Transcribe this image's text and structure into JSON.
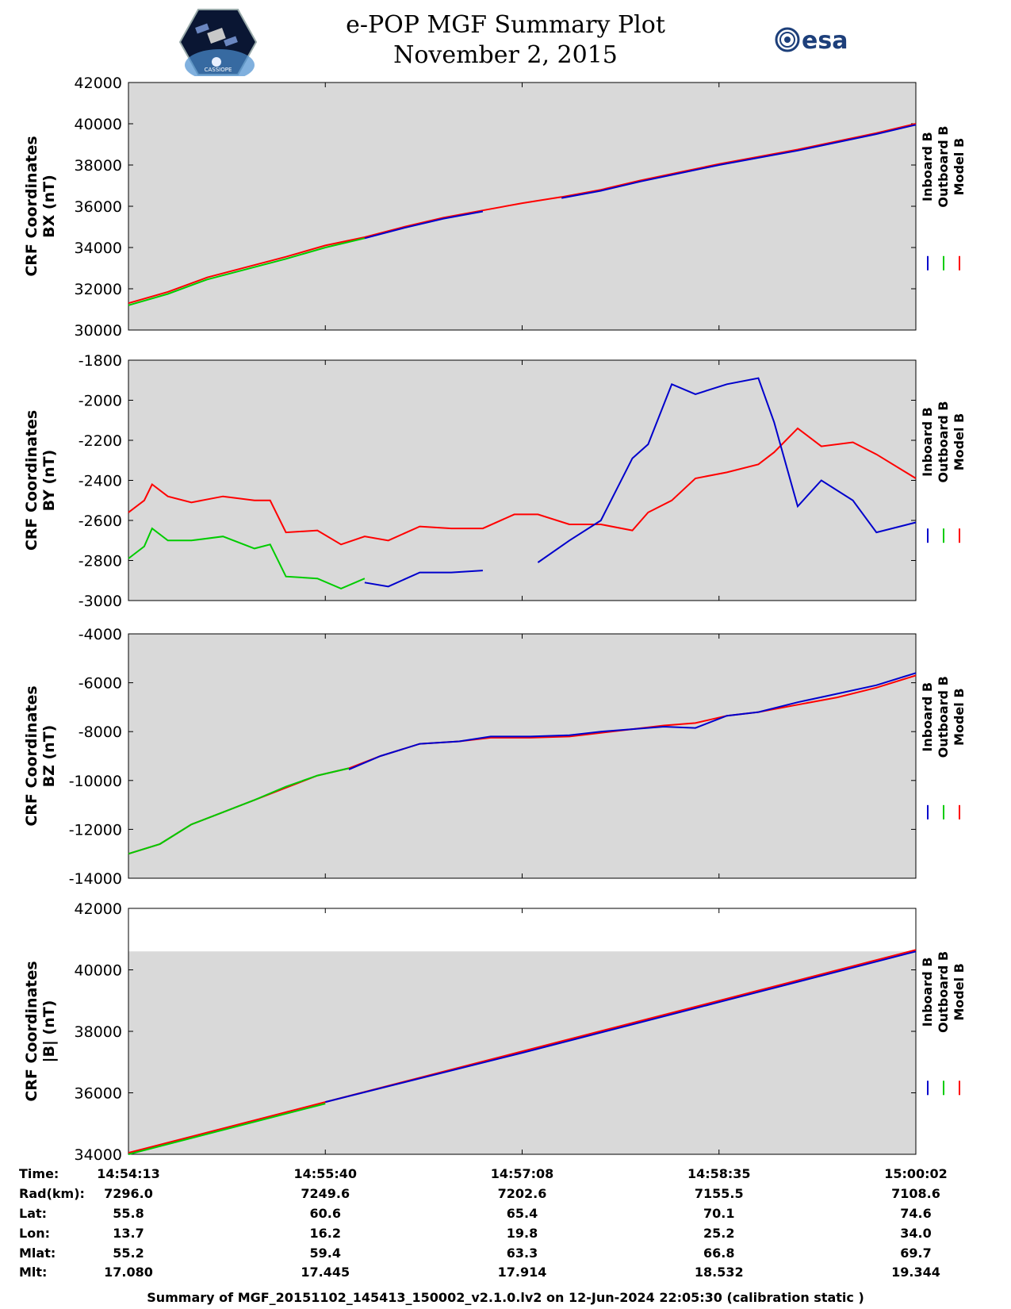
{
  "header": {
    "title": "e-POP MGF Summary Plot",
    "subtitle": "November 2, 2015",
    "left_logo": "epop-cassiope-logo",
    "right_logo": "esa-logo",
    "right_logo_text": "esa",
    "left_logo_text": "CASSIOPE"
  },
  "colors": {
    "inboard": "#0000cc",
    "outboard": "#00cc00",
    "model": "#ff0000",
    "panel_bg": "#d9d9d9"
  },
  "legend": [
    "Inboard B",
    "Outboard B",
    "Model B"
  ],
  "chart_data": [
    {
      "type": "line",
      "ylabel": [
        "CRF Coordinates",
        "BX (nT)"
      ],
      "ylim": [
        30000,
        42000
      ],
      "yticks": [
        30000,
        32000,
        34000,
        36000,
        38000,
        40000,
        42000
      ],
      "grid": false,
      "shaded_ylim": [
        30000,
        42000
      ],
      "x": [
        0,
        0.05,
        0.1,
        0.15,
        0.2,
        0.25,
        0.3,
        0.35,
        0.4,
        0.45,
        0.5,
        0.55,
        0.6,
        0.65,
        0.7,
        0.75,
        0.8,
        0.85,
        0.9,
        0.95,
        1.0
      ],
      "series": [
        {
          "name": "Model B",
          "values": [
            31300,
            31850,
            32550,
            33050,
            33550,
            34100,
            34500,
            35000,
            35450,
            35800,
            36150,
            36450,
            36800,
            37250,
            37650,
            38050,
            38400,
            38750,
            39150,
            39550,
            40000
          ]
        },
        {
          "name": "Outboard B",
          "segments": [
            [
              0,
              0.29
            ]
          ],
          "values": [
            31200,
            31750,
            32450,
            32950,
            33450,
            34000,
            34450,
            null,
            null,
            null,
            null,
            null,
            null,
            null,
            null,
            null,
            null,
            null,
            null,
            null,
            null
          ]
        },
        {
          "name": "Inboard B",
          "segments": [
            [
              0.28,
              0.46
            ],
            [
              0.51,
              1.0
            ]
          ],
          "values": [
            null,
            null,
            null,
            null,
            null,
            null,
            34450,
            34950,
            35400,
            35750,
            null,
            36400,
            36750,
            37200,
            37600,
            38000,
            38350,
            38700,
            39100,
            39500,
            39950
          ]
        }
      ]
    },
    {
      "type": "line",
      "ylabel": [
        "CRF Coordinates",
        "BY (nT)"
      ],
      "ylim": [
        -3000,
        -1800
      ],
      "yticks": [
        -3000,
        -2800,
        -2600,
        -2400,
        -2200,
        -2000,
        -1800
      ],
      "grid": false,
      "shaded_ylim": [
        -3000,
        -1800
      ],
      "x": [
        0,
        0.02,
        0.03,
        0.05,
        0.08,
        0.12,
        0.16,
        0.18,
        0.2,
        0.24,
        0.27,
        0.3,
        0.33,
        0.37,
        0.41,
        0.45,
        0.49,
        0.52,
        0.56,
        0.6,
        0.64,
        0.66,
        0.69,
        0.72,
        0.76,
        0.8,
        0.82,
        0.85,
        0.88,
        0.92,
        0.95,
        1.0
      ],
      "series": [
        {
          "name": "Model B",
          "values": [
            -2560,
            -2500,
            -2420,
            -2480,
            -2510,
            -2480,
            -2500,
            -2500,
            -2660,
            -2650,
            -2720,
            -2680,
            -2700,
            -2630,
            -2640,
            -2640,
            -2570,
            -2570,
            -2620,
            -2620,
            -2650,
            -2560,
            -2500,
            -2390,
            -2360,
            -2320,
            -2260,
            -2140,
            -2230,
            -2210,
            -2270,
            -2390
          ]
        },
        {
          "name": "Outboard B",
          "segments": [
            [
              0,
              0.29
            ],
            [
              0.44,
              0.46
            ]
          ],
          "values": [
            -2790,
            -2730,
            -2640,
            -2700,
            -2700,
            -2680,
            -2740,
            -2720,
            -2880,
            -2890,
            -2940,
            -2890,
            null,
            null,
            null,
            -2850,
            null,
            null,
            null,
            null,
            null,
            null,
            null,
            null,
            null,
            null,
            null,
            null,
            null,
            null,
            null,
            null
          ]
        },
        {
          "name": "Inboard B",
          "segments": [
            [
              0.28,
              0.46
            ],
            [
              0.51,
              1.0
            ]
          ],
          "values": [
            null,
            null,
            null,
            null,
            null,
            null,
            null,
            null,
            null,
            null,
            null,
            -2910,
            -2930,
            -2860,
            -2860,
            -2850,
            null,
            -2810,
            -2700,
            -2600,
            -2290,
            -2220,
            -1920,
            -1970,
            -1920,
            -1890,
            -2110,
            -2530,
            -2400,
            -2500,
            -2660,
            -2610
          ]
        }
      ]
    },
    {
      "type": "line",
      "ylabel": [
        "CRF Coordinates",
        "BZ (nT)"
      ],
      "ylim": [
        -14000,
        -4000
      ],
      "yticks": [
        -14000,
        -12000,
        -10000,
        -8000,
        -6000,
        -4000
      ],
      "grid": false,
      "shaded_ylim": [
        -14000,
        -4000
      ],
      "x": [
        0,
        0.04,
        0.08,
        0.12,
        0.16,
        0.2,
        0.24,
        0.28,
        0.32,
        0.37,
        0.42,
        0.46,
        0.51,
        0.56,
        0.6,
        0.64,
        0.68,
        0.72,
        0.76,
        0.8,
        0.85,
        0.9,
        0.95,
        1.0
      ],
      "series": [
        {
          "name": "Model B",
          "values": [
            -13000,
            -12600,
            -11800,
            -11300,
            -10800,
            -10300,
            -9800,
            -9500,
            -9000,
            -8500,
            -8400,
            -8250,
            -8250,
            -8200,
            -8050,
            -7900,
            -7750,
            -7650,
            -7350,
            -7200,
            -6900,
            -6600,
            -6200,
            -5700
          ]
        },
        {
          "name": "Outboard B",
          "segments": [
            [
              0,
              0.29
            ],
            [
              0.43,
              0.46
            ]
          ],
          "values": [
            -13000,
            -12600,
            -11800,
            -11300,
            -10800,
            -10250,
            -9800,
            -9500,
            null,
            null,
            -8250,
            null,
            null,
            null,
            null,
            null,
            null,
            null,
            null,
            null,
            null,
            null,
            null,
            null
          ]
        },
        {
          "name": "Inboard B",
          "segments": [
            [
              0.28,
              0.46
            ],
            [
              0.51,
              1.0
            ]
          ],
          "values": [
            null,
            null,
            null,
            null,
            null,
            null,
            null,
            -9550,
            -9000,
            -8500,
            -8400,
            -8200,
            -8200,
            -8150,
            -8000,
            -7900,
            -7800,
            -7850,
            -7350,
            -7200,
            -6800,
            -6450,
            -6100,
            -5600
          ]
        }
      ]
    },
    {
      "type": "line",
      "ylabel": [
        "CRF Coordinates",
        "|B| (nT)"
      ],
      "ylim": [
        34000,
        42000
      ],
      "yticks": [
        34000,
        36000,
        38000,
        40000,
        42000
      ],
      "grid": false,
      "shaded_ylim": [
        34000,
        40600
      ],
      "x": [
        0,
        0.25,
        0.5,
        0.75,
        1.0
      ],
      "series": [
        {
          "name": "Model B",
          "values": [
            34050,
            35700,
            37350,
            39000,
            40650
          ]
        },
        {
          "name": "Outboard B",
          "segments": [
            [
              0,
              0.27
            ]
          ],
          "values": [
            34000,
            35650,
            null,
            null,
            null
          ]
        },
        {
          "name": "Inboard B",
          "segments": [
            [
              0.27,
              0.45
            ],
            [
              0.52,
              1.0
            ]
          ],
          "values": [
            null,
            35700,
            37300,
            38950,
            40600
          ]
        }
      ]
    }
  ],
  "info_table": {
    "labels": [
      "Time:",
      "Rad(km):",
      "Lat:",
      "Lon:",
      "Mlat:",
      "Mlt:"
    ],
    "columns": [
      [
        "14:54:13",
        "7296.0",
        "55.8",
        "13.7",
        "55.2",
        "17.080"
      ],
      [
        "14:55:40",
        "7249.6",
        "60.6",
        "16.2",
        "59.4",
        "17.445"
      ],
      [
        "14:57:08",
        "7202.6",
        "65.4",
        "19.8",
        "63.3",
        "17.914"
      ],
      [
        "14:58:35",
        "7155.5",
        "70.1",
        "25.2",
        "66.8",
        "18.532"
      ],
      [
        "15:00:02",
        "7108.6",
        "74.6",
        "34.0",
        "69.7",
        "19.344"
      ]
    ]
  },
  "footer": "Summary of MGF_20151102_145413_150002_v2.1.0.lv2 on 12-Jun-2024 22:05:30 (calibration static )"
}
